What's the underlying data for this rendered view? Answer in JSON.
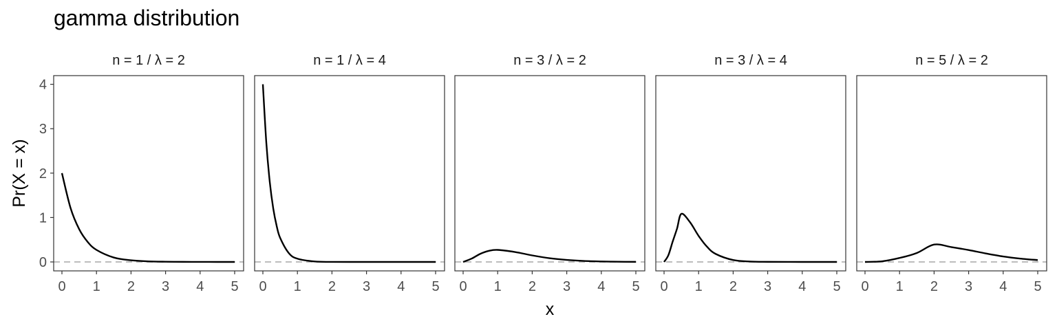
{
  "chart_data": {
    "type": "line",
    "title": "gamma distribution",
    "xlabel": "x",
    "ylabel": "Pr(X = x)",
    "xlim": [
      0,
      5
    ],
    "ylim": [
      0,
      4
    ],
    "x_ticks": [
      "0",
      "1",
      "2",
      "3",
      "4",
      "5"
    ],
    "y_ticks": [
      "0",
      "1",
      "2",
      "3",
      "4"
    ],
    "reference_line": {
      "y": 0,
      "style": "dashed",
      "color": "#bdbdbd"
    },
    "line_color": "#000000",
    "grid": false,
    "facets": [
      {
        "label": "n = 1 / λ = 2",
        "x": [
          0,
          0.25,
          0.5,
          0.75,
          1,
          1.5,
          2,
          2.5,
          3,
          3.5,
          4,
          4.5,
          5
        ],
        "y": [
          2.0,
          1.213,
          0.736,
          0.446,
          0.271,
          0.1,
          0.037,
          0.013,
          0.005,
          0.002,
          0.001,
          0.0,
          0.0
        ]
      },
      {
        "label": "n = 1 / λ = 4",
        "x": [
          0,
          0.1,
          0.2,
          0.3,
          0.4,
          0.5,
          0.75,
          1,
          1.5,
          2,
          3,
          4,
          5
        ],
        "y": [
          4.0,
          2.681,
          1.798,
          1.205,
          0.808,
          0.541,
          0.199,
          0.073,
          0.01,
          0.001,
          0.0,
          0.0,
          0.0
        ]
      },
      {
        "label": "n = 3 / λ = 2",
        "x": [
          0,
          0.25,
          0.5,
          0.75,
          1,
          1.5,
          2,
          2.5,
          3,
          3.5,
          4,
          4.5,
          5
        ],
        "y": [
          0,
          0.076,
          0.184,
          0.251,
          0.271,
          0.224,
          0.147,
          0.084,
          0.045,
          0.022,
          0.011,
          0.005,
          0.002
        ]
      },
      {
        "label": "n = 3 / λ = 4",
        "x": [
          0,
          0.125,
          0.25,
          0.375,
          0.5,
          0.75,
          1,
          1.25,
          1.5,
          2,
          2.5,
          3,
          4,
          5
        ],
        "y": [
          0,
          0.152,
          0.46,
          0.75,
          1.083,
          0.896,
          0.586,
          0.337,
          0.178,
          0.043,
          0.009,
          0.002,
          0.0,
          0.0
        ]
      },
      {
        "label": "n = 5 / λ = 2",
        "x": [
          0,
          0.5,
          1,
          1.5,
          2,
          2.5,
          3,
          3.5,
          4,
          4.5,
          5
        ],
        "y": [
          0,
          0.015,
          0.09,
          0.202,
          0.391,
          0.334,
          0.268,
          0.191,
          0.123,
          0.075,
          0.042
        ]
      }
    ]
  }
}
